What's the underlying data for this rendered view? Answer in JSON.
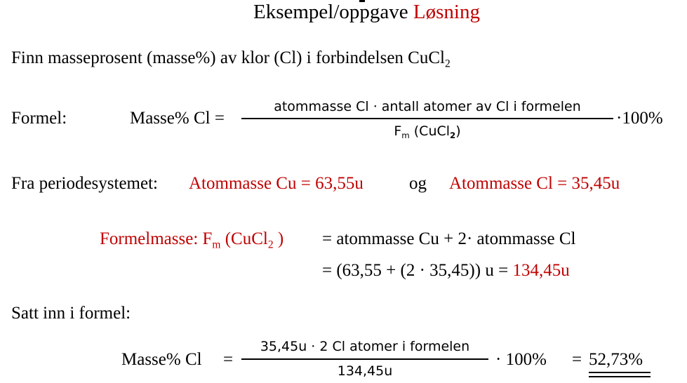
{
  "title": {
    "part1": "Eksempel/oppgave ",
    "part2": "Løsning"
  },
  "task": {
    "text": "Finn masseprosent (masse%) av klor (Cl) i forbindelsen CuCl",
    "sub": "2"
  },
  "formula": {
    "label": "Formel:",
    "lhs": "Masse% Cl =",
    "numerator": "atommasse Cl · antall atomer av Cl i formelen",
    "den_pre": "F",
    "den_sub_m": "m",
    "den_mid": " (CuCl",
    "den_sub_2": "2",
    "den_post": ")",
    "multiplier": "·100%"
  },
  "periodic": {
    "label": "Fra periodesystemet:",
    "cu": "Atommasse Cu = 63,55u",
    "og": "og",
    "cl": "Atommasse Cl = 35,45u"
  },
  "formula_mass": {
    "label_pre": "Formelmasse: F",
    "label_sub_m": "m",
    "label_mid": " (CuCl",
    "label_sub_2": "2",
    "label_post": " )",
    "line1": "= atommasse Cu + 2· atommasse Cl",
    "line2_pre": "= (63,55 + (2 · 35,45)) u = ",
    "line2_result": "134,45u"
  },
  "insert": {
    "label": "Satt inn i formel:",
    "lhs": "Masse% Cl",
    "eq": "=",
    "numerator": "35,45u · 2 Cl atomer i formelen",
    "denominator": "134,45u",
    "multiplier": "· 100%",
    "eq2": "=",
    "result": "52,73%"
  },
  "colors": {
    "accent_red": "#c00000"
  }
}
